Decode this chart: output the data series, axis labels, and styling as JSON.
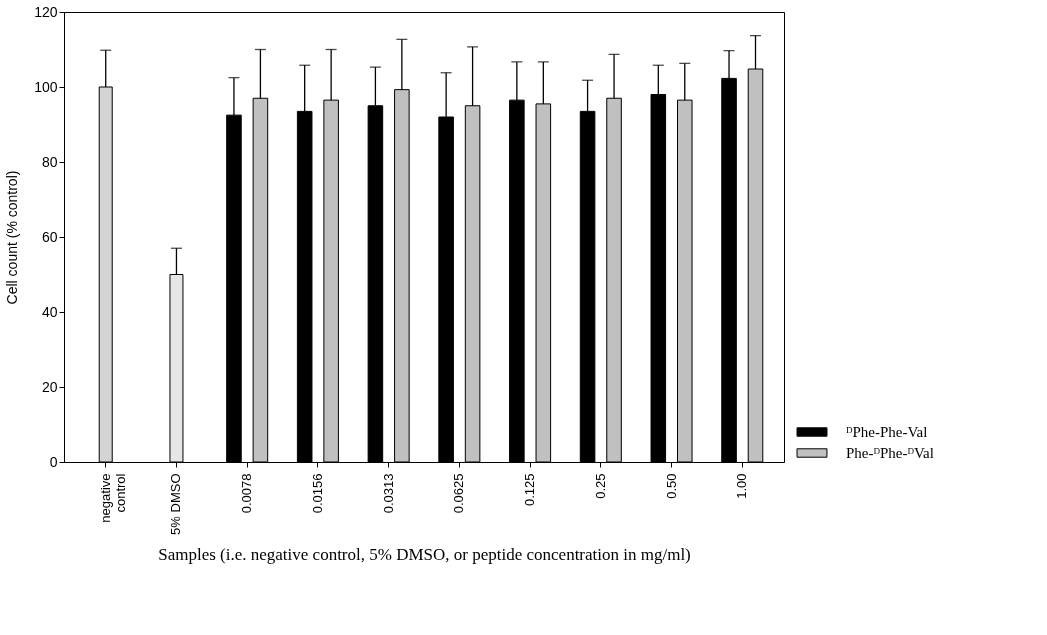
{
  "chart_data": {
    "type": "bar",
    "xlabel": "Samples (i.e. negative control, 5% DMSO, or peptide concentration in mg/ml)",
    "ylabel": "Cell count (% control)",
    "categories": [
      "negative\ncontrol",
      "5% DMSO",
      "0.0078",
      "0.0156",
      "0.0313",
      "0.0625",
      "0.125",
      "0.25",
      "0.50",
      "1.00"
    ],
    "series": [
      {
        "name": "ᴰPhe-Phe-Val",
        "color": "#000000",
        "values": [
          null,
          null,
          92.5,
          93.5,
          95,
          92,
          96.5,
          93.5,
          98,
          102.3
        ],
        "errors": [
          null,
          null,
          [
            92.5,
            102.5
          ],
          [
            93.5,
            105.8
          ],
          [
            95,
            105.3
          ],
          [
            92,
            103.8
          ],
          [
            96.5,
            106.7
          ],
          [
            93.5,
            101.8
          ],
          [
            98,
            105.8
          ],
          [
            102.3,
            109.7
          ]
        ]
      },
      {
        "name": "Phe-ᴰPhe-ᴰVal",
        "color": "#c0c0c0",
        "values": [
          null,
          null,
          97,
          96.5,
          99.3,
          95,
          95.5,
          97,
          96.5,
          104.8
        ],
        "errors": [
          null,
          null,
          [
            97,
            110
          ],
          [
            96.5,
            110
          ],
          [
            99.3,
            112.7
          ],
          [
            95,
            110.7
          ],
          [
            95.5,
            106.7
          ],
          [
            97,
            108.7
          ],
          [
            96.5,
            106.3
          ],
          [
            104.8,
            113.7
          ]
        ]
      },
      {
        "colors": [
          "#d4d4d4",
          "#e6e6e6",
          null,
          null,
          null,
          null,
          null,
          null,
          null,
          null
        ],
        "values": [
          100,
          50,
          null,
          null,
          null,
          null,
          null,
          null,
          null,
          null
        ],
        "errors": [
          [
            100,
            109.8
          ],
          [
            50,
            57
          ],
          null,
          null,
          null,
          null,
          null,
          null,
          null,
          null
        ]
      }
    ],
    "ylim": [
      0,
      120
    ],
    "yticks": [
      0,
      20,
      40,
      60,
      80,
      100,
      120
    ],
    "grid": false,
    "legend": "bottom right"
  }
}
